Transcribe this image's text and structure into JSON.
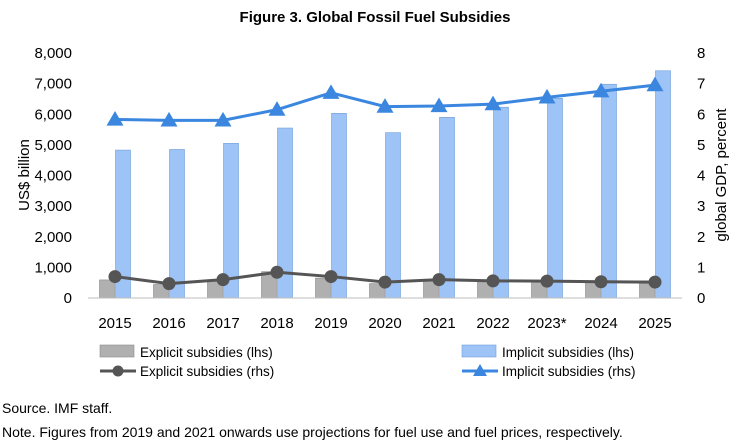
{
  "chart_data": {
    "type": "bar",
    "title": "Figure 3. Global Fossil Fuel Subsidies",
    "categories": [
      "2015",
      "2016",
      "2017",
      "2018",
      "2019",
      "2020",
      "2021",
      "2022",
      "2023*",
      "2024",
      "2025"
    ],
    "ylabel_left": "US$ billion",
    "ylabel_right": "global GDP, percent",
    "ylim_left": [
      0,
      8000
    ],
    "ylim_right": [
      0,
      8
    ],
    "yticks_left": [
      "0",
      "1,000",
      "2,000",
      "3,000",
      "4,000",
      "5,000",
      "6,000",
      "7,000",
      "8,000"
    ],
    "yticks_right": [
      "0",
      "1",
      "2",
      "3",
      "4",
      "5",
      "6",
      "7",
      "8"
    ],
    "grid": false,
    "legend_placement": "bottom",
    "series": [
      {
        "name": "Explicit subsidies (lhs)",
        "kind": "bar",
        "axis": "left",
        "color": "#b0b0b0",
        "values": [
          590,
          440,
          560,
          860,
          650,
          470,
          590,
          590,
          560,
          560,
          560
        ]
      },
      {
        "name": "Implicit subsidies (lhs)",
        "kind": "bar",
        "axis": "left",
        "color": "#9ec3f7",
        "values": [
          4830,
          4850,
          5050,
          5550,
          6030,
          5400,
          5900,
          6230,
          6520,
          6980,
          7420
        ]
      },
      {
        "name": "Explicit subsidies (rhs)",
        "kind": "line",
        "axis": "right",
        "color": "#555555",
        "marker": "circle",
        "values": [
          0.7,
          0.47,
          0.6,
          0.84,
          0.7,
          0.52,
          0.6,
          0.56,
          0.55,
          0.53,
          0.52
        ]
      },
      {
        "name": "Implicit subsidies (rhs)",
        "kind": "line",
        "axis": "right",
        "color": "#3b87e0",
        "marker": "triangle",
        "values": [
          5.83,
          5.8,
          5.8,
          6.15,
          6.7,
          6.25,
          6.27,
          6.33,
          6.55,
          6.75,
          6.95
        ]
      }
    ]
  },
  "source_note": "Source. IMF staff.",
  "footnote": "Note. Figures from 2019 and 2021 onwards use projections for fuel use and fuel prices, respectively."
}
